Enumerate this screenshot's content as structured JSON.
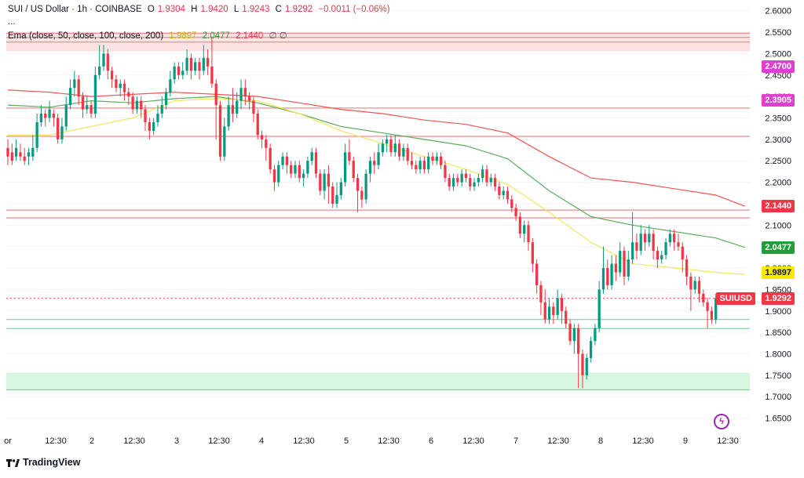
{
  "header": {
    "symbol": "SUI / US Dollar · 1h · COINBASE",
    "o_label": "O",
    "o_val": "1.9304",
    "h_label": "H",
    "h_val": "1.9420",
    "l_label": "L",
    "l_val": "1.9243",
    "c_label": "C",
    "c_val": "1.9292",
    "change": "−0.0011 (−0.06%)",
    "ellipsis": "...",
    "ema_label": "Ema (close, 50, close, 100, close, 200)",
    "ema_vals": [
      "1.9897",
      "2.0477",
      "2.1440"
    ],
    "ema_colors": [
      "#e0c800",
      "#2e9e3a",
      "#e0394a"
    ],
    "ema_empty": "∅  ∅"
  },
  "branding": {
    "name": "TradingView"
  },
  "colors": {
    "up": "#089981",
    "down": "#f23645",
    "ema50": "#f2e65a",
    "ema100": "#5aae5c",
    "ema200": "#ef5350",
    "hline_red": "#f28b90",
    "hline_green": "#6dd49b",
    "zone_green": "#d8f7e3",
    "zone_red": "#fde2e4"
  },
  "chart_data": {
    "type": "candlestick",
    "ylim": [
      1.62,
      2.625
    ],
    "y_ticks": [
      "2.6000",
      "2.5500",
      "2.5000",
      "2.4500",
      "2.4000",
      "2.3500",
      "2.3000",
      "2.2500",
      "2.2000",
      "2.1500",
      "2.1000",
      "2.0500",
      "2.0000",
      "1.9500",
      "1.9000",
      "1.8500",
      "1.8000",
      "1.7500",
      "1.7000",
      "1.6500"
    ],
    "x_ticks": [
      "or",
      "12:30",
      "2",
      "12:30",
      "3",
      "12:30",
      "4",
      "12:30",
      "5",
      "12:30",
      "6",
      "12:30",
      "7",
      "12:30",
      "8",
      "12:30",
      "9",
      "12:30"
    ],
    "price_labels": [
      {
        "text": "2.4700",
        "bg": "#e040d0",
        "value": 2.47
      },
      {
        "text": "2.3905",
        "bg": "#e040d0",
        "value": 2.3905
      },
      {
        "text": "2.1440",
        "bg": "#f23645",
        "value": 2.144
      },
      {
        "text": "2.0477",
        "bg": "#1f9e3a",
        "value": 2.0477
      },
      {
        "text": "1.9897",
        "bg": "#f7e900",
        "value": 1.9897,
        "fg": "#131722"
      },
      {
        "text": "SUIUSD",
        "bg": "#f23645",
        "value": 1.9292
      },
      {
        "text": "1.9292",
        "bg": "#f23645",
        "value": 1.9292
      }
    ],
    "hlines_red": [
      2.5475,
      2.538,
      2.527,
      2.373,
      2.307,
      2.135,
      2.117
    ],
    "hlines_green": [
      1.88,
      1.859,
      1.716
    ],
    "zone_red": [
      2.505,
      2.55
    ],
    "zone_green": [
      1.716,
      1.756
    ],
    "last_price": 1.9292,
    "candles": [
      [
        2.28,
        2.26,
        2.3,
        2.24
      ],
      [
        2.27,
        2.25,
        2.29,
        2.24
      ],
      [
        2.26,
        2.28,
        2.3,
        2.25
      ],
      [
        2.27,
        2.26,
        2.29,
        2.25
      ],
      [
        2.26,
        2.25,
        2.28,
        2.24
      ],
      [
        2.26,
        2.27,
        2.28,
        2.24
      ],
      [
        2.26,
        2.28,
        2.31,
        2.25
      ],
      [
        2.28,
        2.34,
        2.36,
        2.27
      ],
      [
        2.34,
        2.36,
        2.38,
        2.33
      ],
      [
        2.36,
        2.35,
        2.37,
        2.33
      ],
      [
        2.35,
        2.37,
        2.39,
        2.34
      ],
      [
        2.36,
        2.35,
        2.37,
        2.33
      ],
      [
        2.35,
        2.3,
        2.36,
        2.29
      ],
      [
        2.3,
        2.33,
        2.35,
        2.29
      ],
      [
        2.33,
        2.38,
        2.4,
        2.32
      ],
      [
        2.38,
        2.42,
        2.44,
        2.37
      ],
      [
        2.42,
        2.44,
        2.46,
        2.4
      ],
      [
        2.44,
        2.4,
        2.45,
        2.38
      ],
      [
        2.4,
        2.37,
        2.41,
        2.35
      ],
      [
        2.37,
        2.38,
        2.4,
        2.36
      ],
      [
        2.38,
        2.36,
        2.39,
        2.35
      ],
      [
        2.36,
        2.45,
        2.47,
        2.35
      ],
      [
        2.45,
        2.47,
        2.52,
        2.44
      ],
      [
        2.47,
        2.5,
        2.52,
        2.46
      ],
      [
        2.5,
        2.46,
        2.51,
        2.44
      ],
      [
        2.46,
        2.44,
        2.47,
        2.42
      ],
      [
        2.44,
        2.42,
        2.45,
        2.41
      ],
      [
        2.42,
        2.43,
        2.44,
        2.4
      ],
      [
        2.43,
        2.41,
        2.44,
        2.39
      ],
      [
        2.41,
        2.4,
        2.42,
        2.38
      ],
      [
        2.4,
        2.37,
        2.41,
        2.36
      ],
      [
        2.37,
        2.39,
        2.4,
        2.36
      ],
      [
        2.39,
        2.37,
        2.4,
        2.35
      ],
      [
        2.37,
        2.34,
        2.38,
        2.32
      ],
      [
        2.34,
        2.32,
        2.35,
        2.3
      ],
      [
        2.32,
        2.34,
        2.35,
        2.31
      ],
      [
        2.34,
        2.36,
        2.38,
        2.33
      ],
      [
        2.36,
        2.38,
        2.4,
        2.35
      ],
      [
        2.38,
        2.41,
        2.42,
        2.37
      ],
      [
        2.41,
        2.44,
        2.46,
        2.4
      ],
      [
        2.44,
        2.47,
        2.48,
        2.43
      ],
      [
        2.47,
        2.45,
        2.48,
        2.44
      ],
      [
        2.45,
        2.46,
        2.48,
        2.44
      ],
      [
        2.46,
        2.49,
        2.51,
        2.45
      ],
      [
        2.49,
        2.46,
        2.5,
        2.44
      ],
      [
        2.46,
        2.48,
        2.49,
        2.45
      ],
      [
        2.48,
        2.46,
        2.49,
        2.44
      ],
      [
        2.46,
        2.49,
        2.52,
        2.45
      ],
      [
        2.49,
        2.47,
        2.51,
        2.45
      ],
      [
        2.47,
        2.43,
        2.54,
        2.42
      ],
      [
        2.43,
        2.38,
        2.44,
        2.3
      ],
      [
        2.38,
        2.26,
        2.39,
        2.25
      ],
      [
        2.26,
        2.33,
        2.35,
        2.25
      ],
      [
        2.33,
        2.38,
        2.4,
        2.32
      ],
      [
        2.38,
        2.36,
        2.42,
        2.34
      ],
      [
        2.36,
        2.39,
        2.41,
        2.35
      ],
      [
        2.39,
        2.42,
        2.44,
        2.37
      ],
      [
        2.42,
        2.4,
        2.44,
        2.38
      ],
      [
        2.4,
        2.39,
        2.41,
        2.37
      ],
      [
        2.39,
        2.36,
        2.4,
        2.34
      ],
      [
        2.36,
        2.31,
        2.37,
        2.3
      ],
      [
        2.31,
        2.3,
        2.32,
        2.28
      ],
      [
        2.3,
        2.28,
        2.31,
        2.25
      ],
      [
        2.28,
        2.23,
        2.29,
        2.22
      ],
      [
        2.23,
        2.2,
        2.24,
        2.18
      ],
      [
        2.2,
        2.24,
        2.25,
        2.19
      ],
      [
        2.24,
        2.26,
        2.27,
        2.23
      ],
      [
        2.26,
        2.24,
        2.27,
        2.22
      ],
      [
        2.24,
        2.22,
        2.25,
        2.21
      ],
      [
        2.22,
        2.24,
        2.25,
        2.21
      ],
      [
        2.24,
        2.21,
        2.25,
        2.2
      ],
      [
        2.21,
        2.22,
        2.23,
        2.19
      ],
      [
        2.22,
        2.25,
        2.26,
        2.21
      ],
      [
        2.25,
        2.27,
        2.28,
        2.24
      ],
      [
        2.27,
        2.22,
        2.28,
        2.21
      ],
      [
        2.22,
        2.18,
        2.23,
        2.17
      ],
      [
        2.18,
        2.22,
        2.23,
        2.16
      ],
      [
        2.22,
        2.19,
        2.24,
        2.15
      ],
      [
        2.19,
        2.15,
        2.2,
        2.14
      ],
      [
        2.15,
        2.17,
        2.2,
        2.14
      ],
      [
        2.17,
        2.2,
        2.21,
        2.16
      ],
      [
        2.2,
        2.27,
        2.29,
        2.19
      ],
      [
        2.27,
        2.25,
        2.3,
        2.24
      ],
      [
        2.25,
        2.21,
        2.26,
        2.2
      ],
      [
        2.21,
        2.18,
        2.22,
        2.13
      ],
      [
        2.18,
        2.16,
        2.19,
        2.14
      ],
      [
        2.16,
        2.22,
        2.23,
        2.15
      ],
      [
        2.22,
        2.25,
        2.26,
        2.2
      ],
      [
        2.25,
        2.24,
        2.27,
        2.22
      ],
      [
        2.24,
        2.27,
        2.29,
        2.23
      ],
      [
        2.27,
        2.29,
        2.3,
        2.26
      ],
      [
        2.29,
        2.3,
        2.31,
        2.27
      ],
      [
        2.3,
        2.27,
        2.31,
        2.26
      ],
      [
        2.27,
        2.29,
        2.31,
        2.26
      ],
      [
        2.29,
        2.26,
        2.3,
        2.25
      ],
      [
        2.26,
        2.28,
        2.29,
        2.25
      ],
      [
        2.28,
        2.25,
        2.29,
        2.24
      ],
      [
        2.25,
        2.24,
        2.27,
        2.23
      ],
      [
        2.24,
        2.23,
        2.25,
        2.22
      ],
      [
        2.23,
        2.25,
        2.26,
        2.22
      ],
      [
        2.25,
        2.23,
        2.26,
        2.22
      ],
      [
        2.23,
        2.26,
        2.27,
        2.22
      ],
      [
        2.26,
        2.25,
        2.27,
        2.24
      ],
      [
        2.25,
        2.26,
        2.27,
        2.24
      ],
      [
        2.26,
        2.24,
        2.27,
        2.23
      ],
      [
        2.24,
        2.21,
        2.25,
        2.2
      ],
      [
        2.21,
        2.19,
        2.22,
        2.18
      ],
      [
        2.19,
        2.21,
        2.22,
        2.18
      ],
      [
        2.21,
        2.2,
        2.22,
        2.19
      ],
      [
        2.2,
        2.22,
        2.23,
        2.19
      ],
      [
        2.22,
        2.21,
        2.23,
        2.2
      ],
      [
        2.21,
        2.19,
        2.22,
        2.18
      ],
      [
        2.19,
        2.2,
        2.21,
        2.18
      ],
      [
        2.2,
        2.21,
        2.22,
        2.19
      ],
      [
        2.21,
        2.23,
        2.24,
        2.2
      ],
      [
        2.23,
        2.2,
        2.24,
        2.19
      ],
      [
        2.2,
        2.21,
        2.22,
        2.19
      ],
      [
        2.21,
        2.19,
        2.22,
        2.18
      ],
      [
        2.19,
        2.17,
        2.2,
        2.16
      ],
      [
        2.17,
        2.18,
        2.19,
        2.16
      ],
      [
        2.18,
        2.16,
        2.19,
        2.15
      ],
      [
        2.16,
        2.14,
        2.17,
        2.13
      ],
      [
        2.14,
        2.12,
        2.15,
        2.11
      ],
      [
        2.12,
        2.08,
        2.13,
        2.07
      ],
      [
        2.08,
        2.1,
        2.11,
        2.06
      ],
      [
        2.1,
        2.06,
        2.11,
        2.04
      ],
      [
        2.06,
        2.01,
        2.07,
        1.99
      ],
      [
        2.01,
        1.96,
        2.02,
        1.94
      ],
      [
        1.96,
        1.92,
        1.97,
        1.89
      ],
      [
        1.92,
        1.88,
        1.95,
        1.87
      ],
      [
        1.88,
        1.91,
        1.93,
        1.87
      ],
      [
        1.91,
        1.89,
        1.92,
        1.87
      ],
      [
        1.89,
        1.93,
        1.95,
        1.88
      ],
      [
        1.93,
        1.9,
        1.94,
        1.87
      ],
      [
        1.9,
        1.87,
        1.91,
        1.86
      ],
      [
        1.87,
        1.83,
        1.88,
        1.82
      ],
      [
        1.83,
        1.86,
        1.87,
        1.8
      ],
      [
        1.86,
        1.8,
        1.87,
        1.72
      ],
      [
        1.8,
        1.75,
        1.81,
        1.72
      ],
      [
        1.75,
        1.79,
        1.8,
        1.74
      ],
      [
        1.79,
        1.83,
        1.84,
        1.78
      ],
      [
        1.83,
        1.86,
        1.87,
        1.82
      ],
      [
        1.86,
        1.95,
        1.97,
        1.85
      ],
      [
        1.95,
        2.0,
        2.05,
        1.94
      ],
      [
        2.0,
        1.96,
        2.02,
        1.95
      ],
      [
        1.96,
        2.01,
        2.03,
        1.95
      ],
      [
        2.01,
        1.99,
        2.03,
        1.97
      ],
      [
        1.99,
        2.04,
        2.06,
        1.98
      ],
      [
        2.04,
        1.98,
        2.05,
        1.96
      ],
      [
        1.98,
        2.02,
        2.04,
        1.97
      ],
      [
        2.02,
        2.06,
        2.13,
        2.01
      ],
      [
        2.06,
        2.04,
        2.08,
        2.02
      ],
      [
        2.04,
        2.08,
        2.1,
        2.03
      ],
      [
        2.08,
        2.06,
        2.09,
        2.04
      ],
      [
        2.06,
        2.08,
        2.1,
        2.05
      ],
      [
        2.08,
        2.04,
        2.09,
        2.02
      ],
      [
        2.04,
        2.02,
        2.05,
        2.0
      ],
      [
        2.02,
        2.03,
        2.04,
        2.01
      ],
      [
        2.03,
        2.06,
        2.07,
        2.02
      ],
      [
        2.06,
        2.08,
        2.09,
        2.05
      ],
      [
        2.08,
        2.06,
        2.09,
        2.04
      ],
      [
        2.06,
        2.05,
        2.08,
        2.04
      ],
      [
        2.05,
        2.02,
        2.06,
        1.99
      ],
      [
        2.02,
        1.98,
        2.03,
        1.96
      ],
      [
        1.98,
        1.95,
        1.99,
        1.9
      ],
      [
        1.95,
        1.97,
        1.98,
        1.94
      ],
      [
        1.97,
        1.94,
        1.98,
        1.92
      ],
      [
        1.94,
        1.92,
        1.95,
        1.91
      ],
      [
        1.92,
        1.9,
        1.93,
        1.86
      ],
      [
        1.9,
        1.88,
        1.91,
        1.87
      ],
      [
        1.88,
        1.93,
        1.94,
        1.87
      ],
      [
        1.93,
        1.929,
        1.942,
        1.924
      ]
    ],
    "ema50": [
      [
        0,
        2.31
      ],
      [
        10,
        2.31
      ],
      [
        20,
        2.33
      ],
      [
        30,
        2.35
      ],
      [
        40,
        2.39
      ],
      [
        50,
        2.395
      ],
      [
        60,
        2.39
      ],
      [
        70,
        2.36
      ],
      [
        80,
        2.32
      ],
      [
        90,
        2.29
      ],
      [
        100,
        2.26
      ],
      [
        110,
        2.23
      ],
      [
        120,
        2.195
      ],
      [
        130,
        2.13
      ],
      [
        140,
        2.06
      ],
      [
        150,
        2.01
      ],
      [
        160,
        2.0
      ],
      [
        170,
        1.99
      ],
      [
        177,
        1.985
      ]
    ],
    "ema100": [
      [
        0,
        2.38
      ],
      [
        10,
        2.375
      ],
      [
        20,
        2.39
      ],
      [
        30,
        2.385
      ],
      [
        40,
        2.395
      ],
      [
        50,
        2.4
      ],
      [
        60,
        2.385
      ],
      [
        70,
        2.36
      ],
      [
        80,
        2.33
      ],
      [
        90,
        2.315
      ],
      [
        100,
        2.3
      ],
      [
        110,
        2.285
      ],
      [
        120,
        2.255
      ],
      [
        130,
        2.18
      ],
      [
        140,
        2.12
      ],
      [
        150,
        2.1
      ],
      [
        160,
        2.085
      ],
      [
        170,
        2.07
      ],
      [
        177,
        2.048
      ]
    ],
    "ema200": [
      [
        0,
        2.415
      ],
      [
        10,
        2.41
      ],
      [
        20,
        2.4
      ],
      [
        30,
        2.405
      ],
      [
        40,
        2.41
      ],
      [
        50,
        2.405
      ],
      [
        60,
        2.4
      ],
      [
        70,
        2.385
      ],
      [
        80,
        2.37
      ],
      [
        90,
        2.36
      ],
      [
        100,
        2.345
      ],
      [
        110,
        2.335
      ],
      [
        120,
        2.315
      ],
      [
        130,
        2.26
      ],
      [
        140,
        2.21
      ],
      [
        150,
        2.2
      ],
      [
        160,
        2.185
      ],
      [
        170,
        2.17
      ],
      [
        177,
        2.144
      ]
    ]
  }
}
